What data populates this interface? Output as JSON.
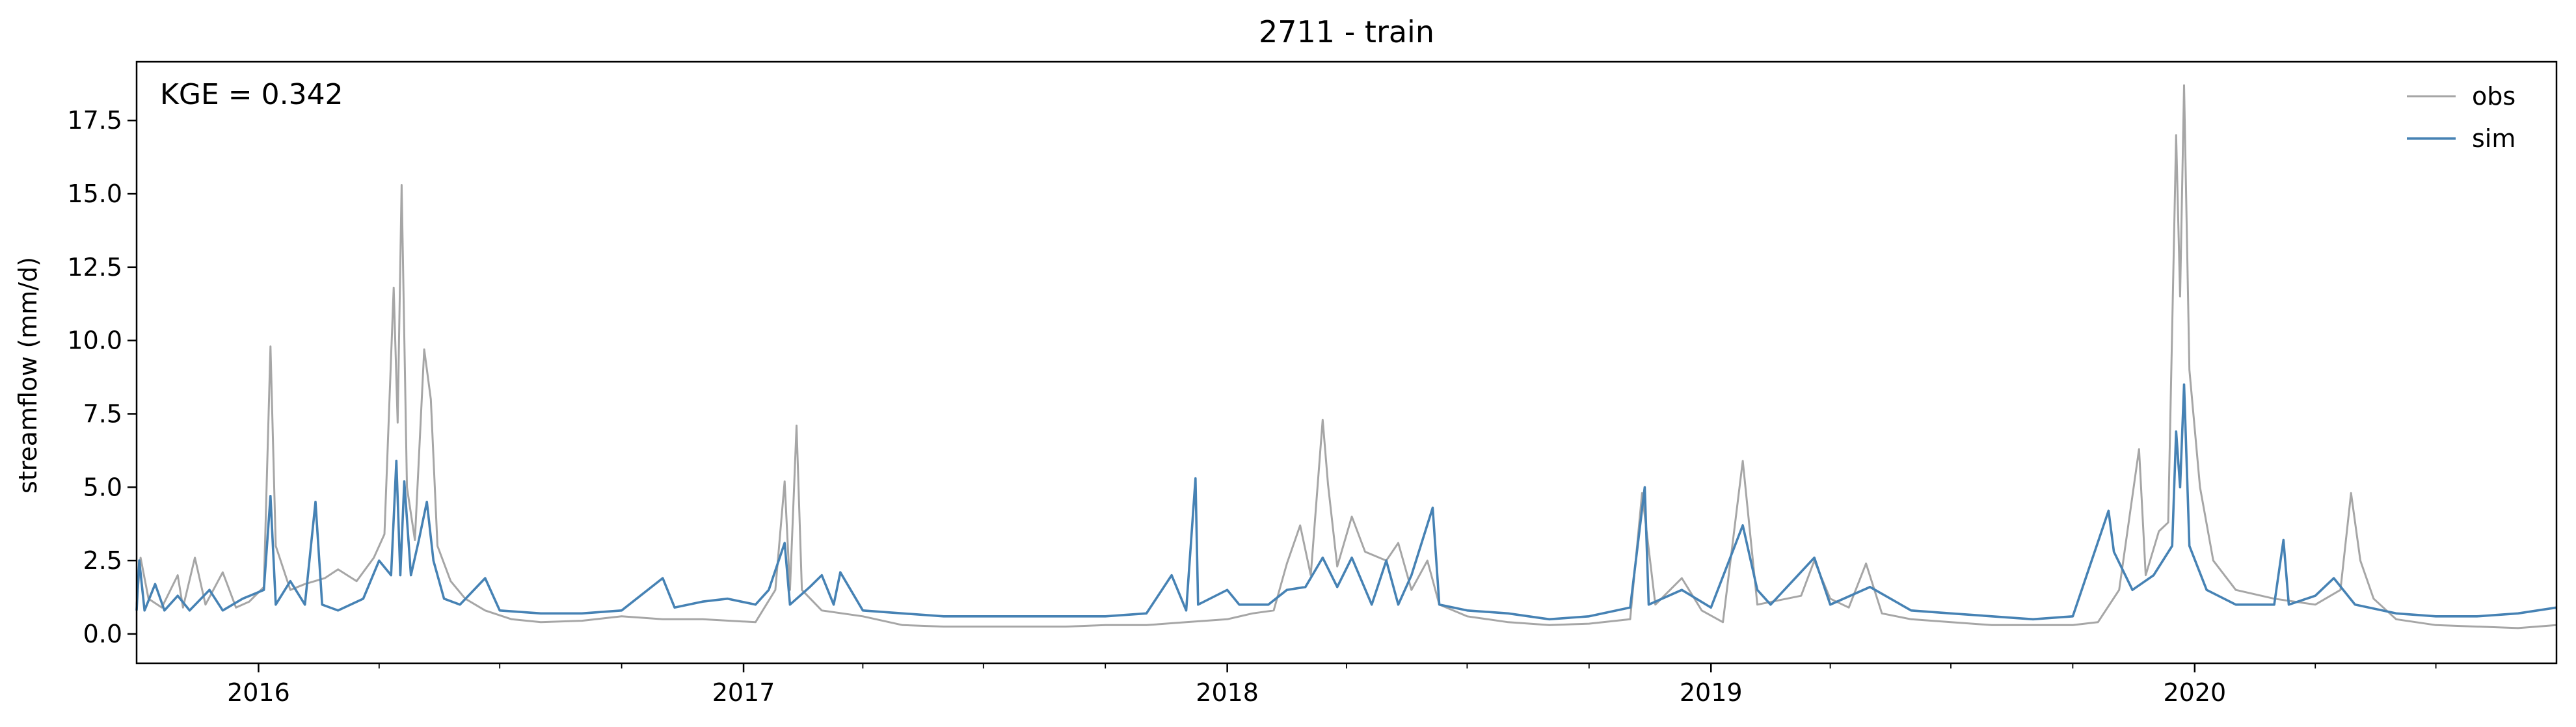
{
  "chart_data": {
    "type": "line",
    "title": "2711 - train",
    "ylabel": "streamflow (mm/d)",
    "xlabel": "",
    "annotation": "KGE = 0.342",
    "xlim": [
      "2015-10-01",
      "2020-09-30"
    ],
    "ylim": [
      -1.0,
      19.5
    ],
    "grid": false,
    "legend_position": "top-right",
    "x_ticks": [
      {
        "date": "2016-01-01",
        "label": "2016"
      },
      {
        "date": "2017-01-01",
        "label": "2017"
      },
      {
        "date": "2018-01-01",
        "label": "2018"
      },
      {
        "date": "2019-01-01",
        "label": "2019"
      },
      {
        "date": "2020-01-01",
        "label": "2020"
      }
    ],
    "y_ticks": [
      0.0,
      2.5,
      5.0,
      7.5,
      10.0,
      12.5,
      15.0,
      17.5
    ],
    "y_tick_labels": [
      "0.0",
      "2.5",
      "5.0",
      "7.5",
      "10.0",
      "12.5",
      "15.0",
      "17.5"
    ],
    "series": [
      {
        "name": "obs",
        "color": "#a6a6a6",
        "points": [
          [
            "2015-10-01",
            1.0
          ],
          [
            "2015-10-04",
            2.6
          ],
          [
            "2015-10-10",
            1.2
          ],
          [
            "2015-10-20",
            0.9
          ],
          [
            "2015-11-01",
            2.0
          ],
          [
            "2015-11-05",
            0.9
          ],
          [
            "2015-11-14",
            2.6
          ],
          [
            "2015-11-22",
            1.0
          ],
          [
            "2015-12-05",
            2.1
          ],
          [
            "2015-12-15",
            0.9
          ],
          [
            "2015-12-25",
            1.1
          ],
          [
            "2016-01-05",
            1.6
          ],
          [
            "2016-01-10",
            9.8
          ],
          [
            "2016-01-14",
            3.0
          ],
          [
            "2016-01-25",
            1.5
          ],
          [
            "2016-02-05",
            1.7
          ],
          [
            "2016-02-20",
            1.9
          ],
          [
            "2016-03-01",
            2.2
          ],
          [
            "2016-03-15",
            1.8
          ],
          [
            "2016-03-28",
            2.6
          ],
          [
            "2016-04-05",
            3.4
          ],
          [
            "2016-04-12",
            11.8
          ],
          [
            "2016-04-15",
            7.2
          ],
          [
            "2016-04-18",
            15.3
          ],
          [
            "2016-04-22",
            5.0
          ],
          [
            "2016-04-28",
            3.2
          ],
          [
            "2016-05-05",
            9.7
          ],
          [
            "2016-05-10",
            8.0
          ],
          [
            "2016-05-15",
            3.0
          ],
          [
            "2016-05-25",
            1.8
          ],
          [
            "2016-06-05",
            1.2
          ],
          [
            "2016-06-20",
            0.8
          ],
          [
            "2016-07-10",
            0.5
          ],
          [
            "2016-08-01",
            0.4
          ],
          [
            "2016-09-01",
            0.45
          ],
          [
            "2016-10-01",
            0.6
          ],
          [
            "2016-11-01",
            0.5
          ],
          [
            "2016-12-01",
            0.5
          ],
          [
            "2017-01-10",
            0.4
          ],
          [
            "2017-01-25",
            1.5
          ],
          [
            "2017-02-01",
            5.2
          ],
          [
            "2017-02-05",
            1.5
          ],
          [
            "2017-02-10",
            7.1
          ],
          [
            "2017-02-14",
            1.5
          ],
          [
            "2017-03-01",
            0.8
          ],
          [
            "2017-04-01",
            0.6
          ],
          [
            "2017-05-01",
            0.3
          ],
          [
            "2017-06-01",
            0.25
          ],
          [
            "2017-07-01",
            0.25
          ],
          [
            "2017-08-01",
            0.25
          ],
          [
            "2017-09-01",
            0.25
          ],
          [
            "2017-10-01",
            0.3
          ],
          [
            "2017-11-01",
            0.3
          ],
          [
            "2017-12-01",
            0.4
          ],
          [
            "2018-01-01",
            0.5
          ],
          [
            "2018-01-20",
            0.7
          ],
          [
            "2018-02-05",
            0.8
          ],
          [
            "2018-02-15",
            2.4
          ],
          [
            "2018-02-25",
            3.7
          ],
          [
            "2018-03-05",
            2.0
          ],
          [
            "2018-03-14",
            7.3
          ],
          [
            "2018-03-18",
            5.1
          ],
          [
            "2018-03-25",
            2.3
          ],
          [
            "2018-04-05",
            4.0
          ],
          [
            "2018-04-15",
            2.8
          ],
          [
            "2018-05-01",
            2.5
          ],
          [
            "2018-05-10",
            3.1
          ],
          [
            "2018-05-20",
            1.5
          ],
          [
            "2018-06-01",
            2.5
          ],
          [
            "2018-06-10",
            1.0
          ],
          [
            "2018-07-01",
            0.6
          ],
          [
            "2018-08-01",
            0.4
          ],
          [
            "2018-09-01",
            0.3
          ],
          [
            "2018-10-01",
            0.35
          ],
          [
            "2018-11-01",
            0.5
          ],
          [
            "2018-11-10",
            4.8
          ],
          [
            "2018-11-20",
            1.0
          ],
          [
            "2018-12-10",
            1.9
          ],
          [
            "2018-12-25",
            0.8
          ],
          [
            "2019-01-10",
            0.4
          ],
          [
            "2019-01-25",
            5.9
          ],
          [
            "2019-02-05",
            1.0
          ],
          [
            "2019-03-10",
            1.3
          ],
          [
            "2019-03-20",
            2.5
          ],
          [
            "2019-04-01",
            1.2
          ],
          [
            "2019-04-15",
            0.9
          ],
          [
            "2019-04-28",
            2.4
          ],
          [
            "2019-05-10",
            0.7
          ],
          [
            "2019-06-01",
            0.5
          ],
          [
            "2019-07-01",
            0.4
          ],
          [
            "2019-08-01",
            0.3
          ],
          [
            "2019-09-01",
            0.3
          ],
          [
            "2019-10-01",
            0.3
          ],
          [
            "2019-10-20",
            0.4
          ],
          [
            "2019-11-05",
            1.5
          ],
          [
            "2019-11-20",
            6.3
          ],
          [
            "2019-11-25",
            2.0
          ],
          [
            "2019-12-05",
            3.5
          ],
          [
            "2019-12-12",
            3.8
          ],
          [
            "2019-12-18",
            17.0
          ],
          [
            "2019-12-21",
            11.5
          ],
          [
            "2019-12-24",
            18.7
          ],
          [
            "2019-12-28",
            9.0
          ],
          [
            "2020-01-05",
            5.0
          ],
          [
            "2020-01-15",
            2.5
          ],
          [
            "2020-02-01",
            1.5
          ],
          [
            "2020-03-01",
            1.2
          ],
          [
            "2020-04-01",
            1.0
          ],
          [
            "2020-04-20",
            1.5
          ],
          [
            "2020-04-28",
            4.8
          ],
          [
            "2020-05-05",
            2.5
          ],
          [
            "2020-05-15",
            1.2
          ],
          [
            "2020-06-01",
            0.5
          ],
          [
            "2020-07-01",
            0.3
          ],
          [
            "2020-08-01",
            0.25
          ],
          [
            "2020-09-01",
            0.2
          ],
          [
            "2020-09-30",
            0.3
          ]
        ]
      },
      {
        "name": "sim",
        "color": "#4682b4",
        "points": [
          [
            "2015-10-01",
            0.8
          ],
          [
            "2015-10-03",
            2.5
          ],
          [
            "2015-10-07",
            0.8
          ],
          [
            "2015-10-15",
            1.7
          ],
          [
            "2015-10-22",
            0.8
          ],
          [
            "2015-11-01",
            1.3
          ],
          [
            "2015-11-10",
            0.8
          ],
          [
            "2015-11-25",
            1.5
          ],
          [
            "2015-12-05",
            0.8
          ],
          [
            "2015-12-20",
            1.2
          ],
          [
            "2016-01-05",
            1.5
          ],
          [
            "2016-01-10",
            4.7
          ],
          [
            "2016-01-14",
            1.0
          ],
          [
            "2016-01-25",
            1.8
          ],
          [
            "2016-02-05",
            1.0
          ],
          [
            "2016-02-13",
            4.5
          ],
          [
            "2016-02-18",
            1.0
          ],
          [
            "2016-03-01",
            0.8
          ],
          [
            "2016-03-20",
            1.2
          ],
          [
            "2016-04-01",
            2.5
          ],
          [
            "2016-04-10",
            2.0
          ],
          [
            "2016-04-14",
            5.9
          ],
          [
            "2016-04-17",
            2.0
          ],
          [
            "2016-04-20",
            5.2
          ],
          [
            "2016-04-25",
            2.0
          ],
          [
            "2016-05-01",
            3.2
          ],
          [
            "2016-05-07",
            4.5
          ],
          [
            "2016-05-12",
            2.5
          ],
          [
            "2016-05-20",
            1.2
          ],
          [
            "2016-06-01",
            1.0
          ],
          [
            "2016-06-20",
            1.9
          ],
          [
            "2016-07-01",
            0.8
          ],
          [
            "2016-08-01",
            0.7
          ],
          [
            "2016-09-01",
            0.7
          ],
          [
            "2016-10-01",
            0.8
          ],
          [
            "2016-11-01",
            1.9
          ],
          [
            "2016-11-10",
            0.9
          ],
          [
            "2016-12-01",
            1.1
          ],
          [
            "2016-12-20",
            1.2
          ],
          [
            "2017-01-10",
            1.0
          ],
          [
            "2017-01-20",
            1.5
          ],
          [
            "2017-02-01",
            3.1
          ],
          [
            "2017-02-05",
            1.0
          ],
          [
            "2017-02-20",
            1.6
          ],
          [
            "2017-03-01",
            2.0
          ],
          [
            "2017-03-10",
            1.0
          ],
          [
            "2017-03-15",
            2.1
          ],
          [
            "2017-04-01",
            0.8
          ],
          [
            "2017-05-01",
            0.7
          ],
          [
            "2017-06-01",
            0.6
          ],
          [
            "2017-07-01",
            0.6
          ],
          [
            "2017-08-01",
            0.6
          ],
          [
            "2017-09-01",
            0.6
          ],
          [
            "2017-10-01",
            0.6
          ],
          [
            "2017-11-01",
            0.7
          ],
          [
            "2017-11-20",
            2.0
          ],
          [
            "2017-12-01",
            0.8
          ],
          [
            "2017-12-08",
            5.3
          ],
          [
            "2017-12-10",
            1.0
          ],
          [
            "2018-01-01",
            1.5
          ],
          [
            "2018-01-10",
            1.0
          ],
          [
            "2018-02-01",
            1.0
          ],
          [
            "2018-02-15",
            1.5
          ],
          [
            "2018-03-01",
            1.6
          ],
          [
            "2018-03-14",
            2.6
          ],
          [
            "2018-03-25",
            1.6
          ],
          [
            "2018-04-05",
            2.6
          ],
          [
            "2018-04-20",
            1.0
          ],
          [
            "2018-05-01",
            2.5
          ],
          [
            "2018-05-10",
            1.0
          ],
          [
            "2018-05-20",
            2.0
          ],
          [
            "2018-06-05",
            4.3
          ],
          [
            "2018-06-10",
            1.0
          ],
          [
            "2018-07-01",
            0.8
          ],
          [
            "2018-08-01",
            0.7
          ],
          [
            "2018-09-01",
            0.5
          ],
          [
            "2018-10-01",
            0.6
          ],
          [
            "2018-11-01",
            0.9
          ],
          [
            "2018-11-12",
            5.0
          ],
          [
            "2018-11-15",
            1.0
          ],
          [
            "2018-12-10",
            1.5
          ],
          [
            "2019-01-01",
            0.9
          ],
          [
            "2019-01-25",
            3.7
          ],
          [
            "2019-02-05",
            1.5
          ],
          [
            "2019-02-15",
            1.0
          ],
          [
            "2019-03-20",
            2.6
          ],
          [
            "2019-04-01",
            1.0
          ],
          [
            "2019-05-01",
            1.6
          ],
          [
            "2019-06-01",
            0.8
          ],
          [
            "2019-07-01",
            0.7
          ],
          [
            "2019-08-01",
            0.6
          ],
          [
            "2019-09-01",
            0.5
          ],
          [
            "2019-10-01",
            0.6
          ],
          [
            "2019-10-28",
            4.2
          ],
          [
            "2019-11-01",
            2.8
          ],
          [
            "2019-11-15",
            1.5
          ],
          [
            "2019-12-01",
            2.0
          ],
          [
            "2019-12-15",
            3.0
          ],
          [
            "2019-12-18",
            6.9
          ],
          [
            "2019-12-21",
            5.0
          ],
          [
            "2019-12-24",
            8.5
          ],
          [
            "2019-12-28",
            3.0
          ],
          [
            "2020-01-10",
            1.5
          ],
          [
            "2020-02-01",
            1.0
          ],
          [
            "2020-03-01",
            1.0
          ],
          [
            "2020-03-08",
            3.2
          ],
          [
            "2020-03-12",
            1.0
          ],
          [
            "2020-04-01",
            1.3
          ],
          [
            "2020-04-15",
            1.9
          ],
          [
            "2020-05-01",
            1.0
          ],
          [
            "2020-06-01",
            0.7
          ],
          [
            "2020-07-01",
            0.6
          ],
          [
            "2020-08-01",
            0.6
          ],
          [
            "2020-09-01",
            0.7
          ],
          [
            "2020-09-30",
            0.9
          ]
        ]
      }
    ]
  }
}
